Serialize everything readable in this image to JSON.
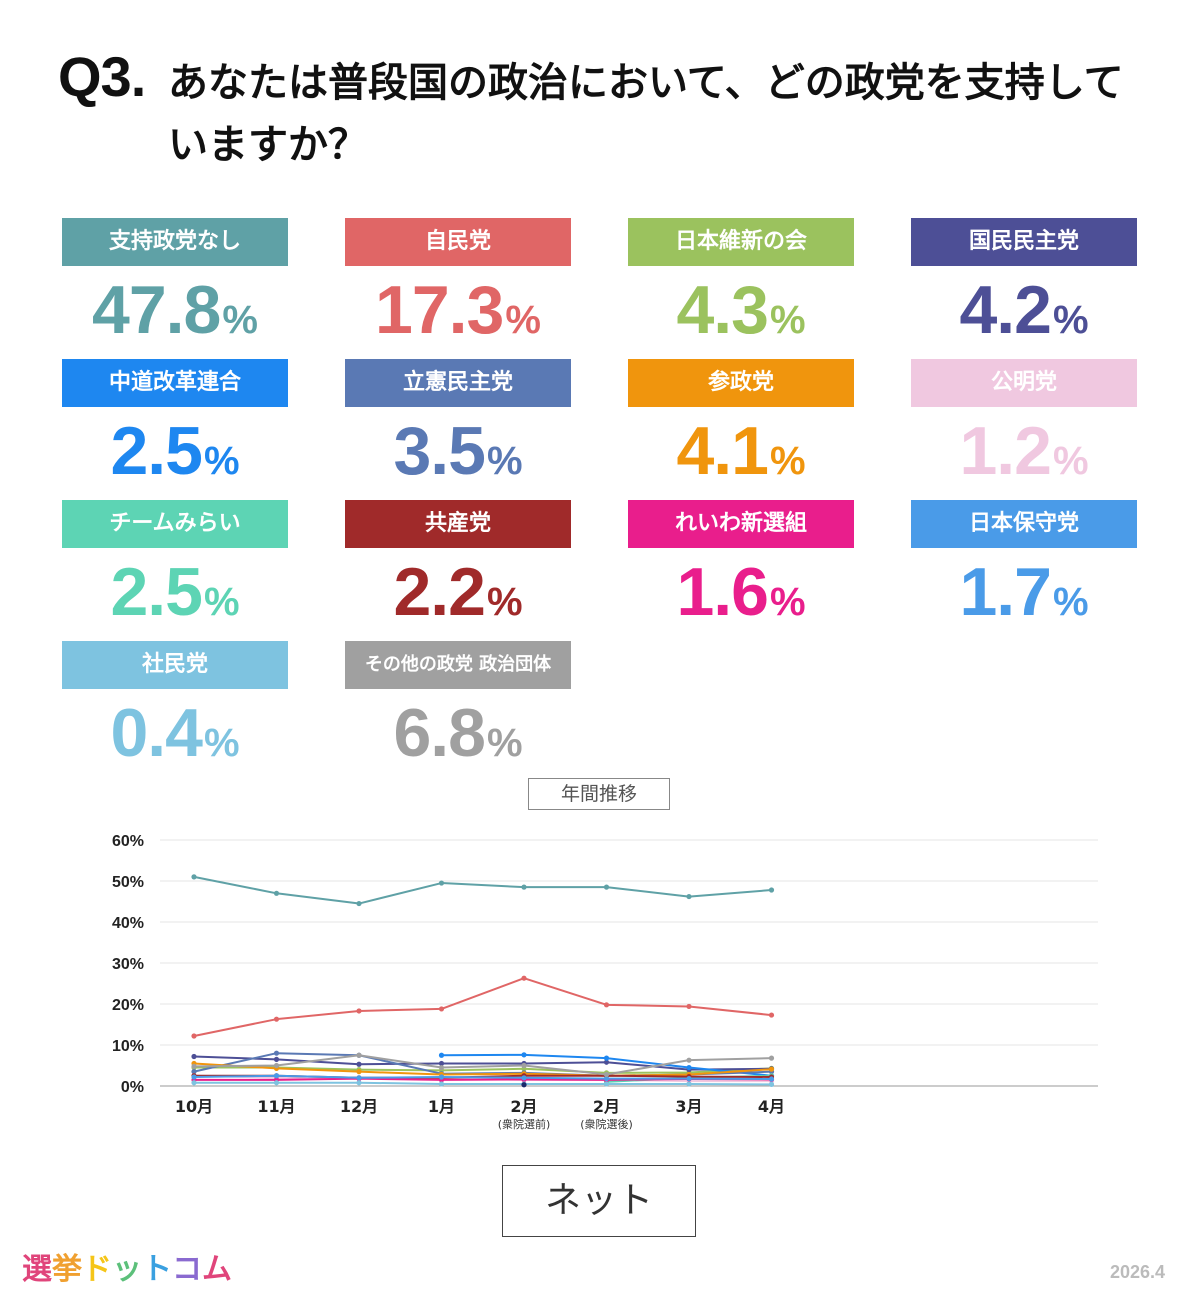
{
  "question": {
    "number": "Q3.",
    "text": "あなたは普段国の政治において、どの政党を支持していますか？"
  },
  "parties": [
    {
      "name": "支持政党なし",
      "value": "47.8",
      "unit": "%",
      "color": "#5fa1a6",
      "text_color": "#5fa1a6"
    },
    {
      "name": "自民党",
      "value": "17.3",
      "unit": "%",
      "color": "#e06666",
      "text_color": "#e06666"
    },
    {
      "name": "日本維新の会",
      "value": "4.3",
      "unit": "%",
      "color": "#9bc25e",
      "text_color": "#9bc25e"
    },
    {
      "name": "国民民主党",
      "value": "4.2",
      "unit": "%",
      "color": "#4d4f96",
      "text_color": "#4d4f96"
    },
    {
      "name": "中道改革連合",
      "value": "2.5",
      "unit": "%",
      "color": "#1e87f0",
      "text_color": "#1e87f0"
    },
    {
      "name": "立憲民主党",
      "value": "3.5",
      "unit": "%",
      "color": "#5a79b4",
      "text_color": "#5a79b4"
    },
    {
      "name": "参政党",
      "value": "4.1",
      "unit": "%",
      "color": "#f0950d",
      "text_color": "#f0950d"
    },
    {
      "name": "公明党",
      "value": "1.2",
      "unit": "%",
      "color": "#f0c8e0",
      "text_color": "#f0c8e0"
    },
    {
      "name": "チームみらい",
      "value": "2.5",
      "unit": "%",
      "color": "#5dd4b4",
      "text_color": "#5dd4b4"
    },
    {
      "name": "共産党",
      "value": "2.2",
      "unit": "%",
      "color": "#a02a2a",
      "text_color": "#a02a2a"
    },
    {
      "name": "れいわ新選組",
      "value": "1.6",
      "unit": "%",
      "color": "#e91e8c",
      "text_color": "#e91e8c"
    },
    {
      "name": "日本保守党",
      "value": "1.7",
      "unit": "%",
      "color": "#4a9be8",
      "text_color": "#4a9be8"
    },
    {
      "name": "社民党",
      "value": "0.4",
      "unit": "%",
      "color": "#7ec3e0",
      "text_color": "#7ec3e0"
    },
    {
      "name": "その他の政党 政治団体",
      "value": "6.8",
      "unit": "%",
      "color": "#a0a0a0",
      "text_color": "#a0a0a0"
    }
  ],
  "trend_title": "年間推移",
  "net_label": "ネット",
  "logo": {
    "text": "選挙ドットコム",
    "colors": [
      "#e0457b",
      "#f0a030",
      "#f5c518",
      "#5cc07a",
      "#3aa0e0",
      "#8a6ad0",
      "#e0457b"
    ]
  },
  "date": "2026.4",
  "chart_data": {
    "type": "line",
    "categories": [
      "10月",
      "11月",
      "12月",
      "1月",
      "2月",
      "2月",
      "3月",
      "4月"
    ],
    "category_sublabels": [
      "",
      "",
      "",
      "",
      "(衆院選前)",
      "(衆院選後)",
      "",
      ""
    ],
    "y_ticks": [
      "0%",
      "10%",
      "20%",
      "30%",
      "40%",
      "50%",
      "60%"
    ],
    "ylim": [
      0,
      60
    ],
    "grid": true,
    "series": [
      {
        "name": "支持政党なし",
        "color": "#5fa1a6",
        "values": [
          51.0,
          47.0,
          44.5,
          49.5,
          48.5,
          48.5,
          46.2,
          47.8
        ]
      },
      {
        "name": "自民党",
        "color": "#e06666",
        "values": [
          12.2,
          16.3,
          18.3,
          18.8,
          26.3,
          19.8,
          19.4,
          17.3
        ]
      },
      {
        "name": "日本維新の会",
        "color": "#9bc25e",
        "values": [
          4.5,
          4.5,
          4.0,
          3.8,
          4.2,
          3.2,
          3.3,
          4.3
        ]
      },
      {
        "name": "国民民主党",
        "color": "#4d4f96",
        "values": [
          7.2,
          6.5,
          5.3,
          5.5,
          5.5,
          5.8,
          4.0,
          4.2
        ]
      },
      {
        "name": "中道改革連合",
        "color": "#1e87f0",
        "values": [
          null,
          null,
          null,
          7.5,
          7.6,
          6.8,
          4.5,
          2.5
        ]
      },
      {
        "name": "立憲民主党",
        "color": "#5a79b4",
        "values": [
          3.5,
          8.0,
          7.5,
          3.0,
          3.2,
          2.5,
          2.8,
          3.5
        ]
      },
      {
        "name": "参政党",
        "color": "#f0950d",
        "values": [
          5.5,
          4.3,
          3.5,
          2.8,
          3.0,
          2.5,
          2.8,
          4.1
        ]
      },
      {
        "name": "公明党",
        "color": "#f0c8e0",
        "values": [
          2.5,
          2.0,
          2.0,
          1.8,
          1.5,
          1.5,
          1.2,
          1.2
        ]
      },
      {
        "name": "チームみらい",
        "color": "#5dd4b4",
        "values": [
          null,
          null,
          null,
          null,
          null,
          1.0,
          2.0,
          2.5
        ]
      },
      {
        "name": "共産党",
        "color": "#a02a2a",
        "values": [
          2.5,
          2.5,
          2.0,
          2.0,
          2.5,
          2.5,
          2.3,
          2.2
        ]
      },
      {
        "name": "れいわ新選組",
        "color": "#e91e8c",
        "values": [
          1.5,
          1.5,
          1.8,
          1.5,
          1.6,
          1.5,
          1.7,
          1.6
        ]
      },
      {
        "name": "日本保守党",
        "color": "#4a9be8",
        "values": [
          2.2,
          2.5,
          2.0,
          2.2,
          2.0,
          1.8,
          1.8,
          1.7
        ]
      },
      {
        "name": "社民党",
        "color": "#7ec3e0",
        "values": [
          0.8,
          0.8,
          0.8,
          0.5,
          0.5,
          0.5,
          0.5,
          0.4
        ]
      },
      {
        "name": "その他の政党 政治団体",
        "color": "#a0a0a0",
        "values": [
          4.8,
          5.0,
          7.5,
          4.5,
          5.0,
          2.8,
          6.3,
          6.8
        ]
      },
      {
        "name": "",
        "color": "#1a2a6a",
        "values": [
          null,
          null,
          null,
          null,
          0.3,
          null,
          null,
          null
        ]
      }
    ]
  }
}
